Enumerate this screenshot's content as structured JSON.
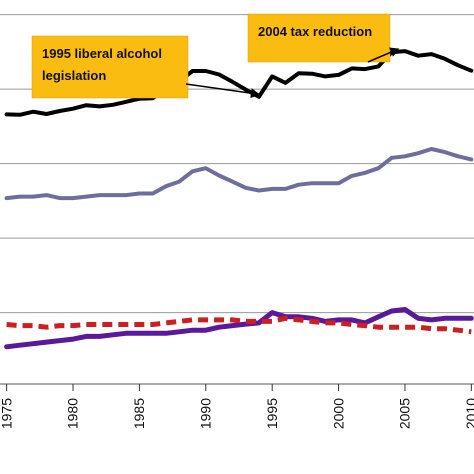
{
  "chart_data": {
    "type": "line",
    "title": "",
    "xlabel": "",
    "ylabel": "",
    "xlim": [
      1974.5,
      2010.2
    ],
    "ylim": [
      0,
      1
    ],
    "grid": "horizontal",
    "legend": "none",
    "x_ticks": [
      1975,
      1980,
      1985,
      1990,
      1995,
      2000,
      2005,
      2010
    ],
    "x_tick_labels": [
      "1975",
      "1980",
      "1985",
      "1990",
      "1995",
      "2000",
      "2005",
      "2010"
    ],
    "y_gridlines": [
      0.186,
      0.38,
      0.574,
      0.768,
      0.962
    ],
    "annotations": [
      {
        "text_lines": [
          "1995 liberal alcohol",
          "legislation"
        ],
        "target": [
          1994,
          0.744
        ]
      },
      {
        "text_lines": [
          "2004 tax reduction"
        ],
        "target": [
          2004.5,
          0.862
        ]
      }
    ],
    "series": [
      {
        "color": "#000000",
        "style": "solid",
        "width": 4,
        "x": [
          1975,
          1976,
          1977,
          1978,
          1979,
          1980,
          1981,
          1982,
          1983,
          1984,
          1985,
          1986,
          1987,
          1988,
          1989,
          1990,
          1991,
          1992,
          1993,
          1994,
          1995,
          1996,
          1997,
          1998,
          1999,
          2000,
          2001,
          2002,
          2003,
          2004,
          2005,
          2006,
          2007,
          2008,
          2009,
          2010
        ],
        "y": [
          0.702,
          0.701,
          0.709,
          0.703,
          0.711,
          0.717,
          0.726,
          0.723,
          0.727,
          0.735,
          0.743,
          0.744,
          0.77,
          0.788,
          0.815,
          0.815,
          0.806,
          0.787,
          0.767,
          0.748,
          0.801,
          0.784,
          0.809,
          0.808,
          0.801,
          0.805,
          0.822,
          0.82,
          0.827,
          0.864,
          0.867,
          0.855,
          0.859,
          0.847,
          0.83,
          0.816
        ]
      },
      {
        "color": "#6e6e9e",
        "style": "solid",
        "width": 4,
        "x": [
          1975,
          1976,
          1977,
          1978,
          1979,
          1980,
          1981,
          1982,
          1983,
          1984,
          1985,
          1986,
          1987,
          1988,
          1989,
          1990,
          1991,
          1992,
          1993,
          1994,
          1995,
          1996,
          1997,
          1998,
          1999,
          2000,
          2001,
          2002,
          2003,
          2004,
          2005,
          2006,
          2007,
          2008,
          2009,
          2010
        ],
        "y": [
          0.484,
          0.488,
          0.488,
          0.492,
          0.484,
          0.484,
          0.488,
          0.492,
          0.492,
          0.492,
          0.496,
          0.496,
          0.515,
          0.527,
          0.554,
          0.562,
          0.543,
          0.527,
          0.511,
          0.504,
          0.508,
          0.508,
          0.519,
          0.523,
          0.523,
          0.523,
          0.542,
          0.55,
          0.562,
          0.589,
          0.593,
          0.601,
          0.612,
          0.604,
          0.593,
          0.585
        ]
      },
      {
        "color": "#5a189a",
        "style": "solid",
        "width": 5,
        "x": [
          1975,
          1976,
          1977,
          1978,
          1979,
          1980,
          1981,
          1982,
          1983,
          1984,
          1985,
          1986,
          1987,
          1988,
          1989,
          1990,
          1991,
          1992,
          1993,
          1994,
          1995,
          1996,
          1997,
          1998,
          1999,
          2000,
          2001,
          2002,
          2003,
          2004,
          2005,
          2006,
          2007,
          2008,
          2009,
          2010
        ],
        "y": [
          0.097,
          0.101,
          0.105,
          0.109,
          0.113,
          0.117,
          0.124,
          0.124,
          0.128,
          0.132,
          0.132,
          0.132,
          0.132,
          0.136,
          0.14,
          0.14,
          0.148,
          0.152,
          0.156,
          0.159,
          0.186,
          0.175,
          0.175,
          0.171,
          0.163,
          0.167,
          0.167,
          0.159,
          0.175,
          0.19,
          0.194,
          0.171,
          0.167,
          0.171,
          0.171,
          0.171
        ]
      },
      {
        "color": "#cc1f1f",
        "style": "dashed",
        "width": 5,
        "x": [
          1975,
          1976,
          1977,
          1978,
          1979,
          1980,
          1981,
          1982,
          1983,
          1984,
          1985,
          1986,
          1987,
          1988,
          1989,
          1990,
          1991,
          1992,
          1993,
          1994,
          1995,
          1996,
          1997,
          1998,
          1999,
          2000,
          2001,
          2002,
          2003,
          2004,
          2005,
          2006,
          2007,
          2008,
          2009,
          2010
        ],
        "y": [
          0.155,
          0.152,
          0.152,
          0.148,
          0.152,
          0.152,
          0.155,
          0.155,
          0.155,
          0.155,
          0.155,
          0.155,
          0.159,
          0.163,
          0.167,
          0.167,
          0.167,
          0.167,
          0.163,
          0.163,
          0.163,
          0.171,
          0.167,
          0.163,
          0.159,
          0.159,
          0.155,
          0.152,
          0.148,
          0.148,
          0.148,
          0.148,
          0.144,
          0.144,
          0.14,
          0.136
        ]
      }
    ]
  }
}
